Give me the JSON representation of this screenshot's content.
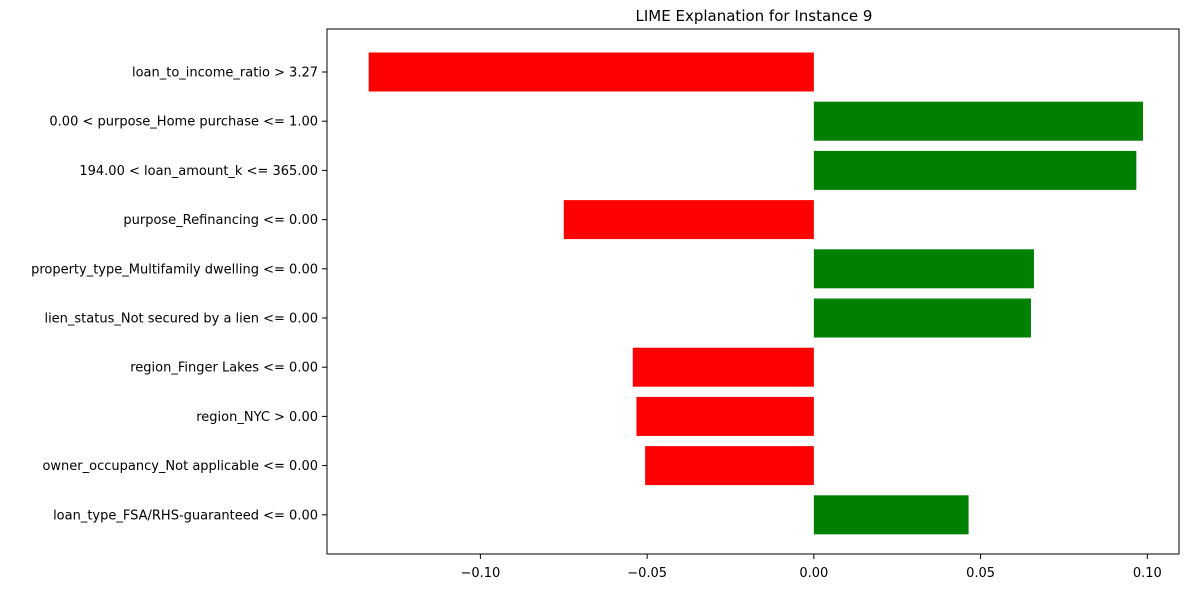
{
  "chart_data": {
    "type": "bar",
    "orientation": "horizontal",
    "title": "LIME Explanation for Instance 9",
    "xlabel": "",
    "ylabel": "",
    "categories": [
      "loan_to_income_ratio > 3.27",
      "0.00 < purpose_Home purchase <= 1.00",
      "194.00 < loan_amount_k <= 365.00",
      "purpose_Refinancing <= 0.00",
      "property_type_Multifamily dwelling <= 0.00",
      "lien_status_Not secured by a lien <= 0.00",
      "region_Finger Lakes <= 0.00",
      "region_NYC > 0.00",
      "owner_occupancy_Not applicable <= 0.00",
      "loan_type_FSA/RHS-guaranteed <= 0.00"
    ],
    "values": [
      -0.1335,
      0.0987,
      0.0967,
      -0.075,
      0.066,
      0.0651,
      -0.0543,
      -0.0532,
      -0.0506,
      0.0464
    ],
    "xlim": [
      -0.146,
      0.1095
    ],
    "xticks": [
      -0.1,
      -0.05,
      0.0,
      0.05,
      0.1
    ],
    "xtick_labels": [
      "−0.10",
      "−0.05",
      "0.00",
      "0.05",
      "0.10"
    ],
    "colors": {
      "positive": "#008000",
      "negative": "#ff0000"
    },
    "grid": false,
    "legend": "none"
  }
}
